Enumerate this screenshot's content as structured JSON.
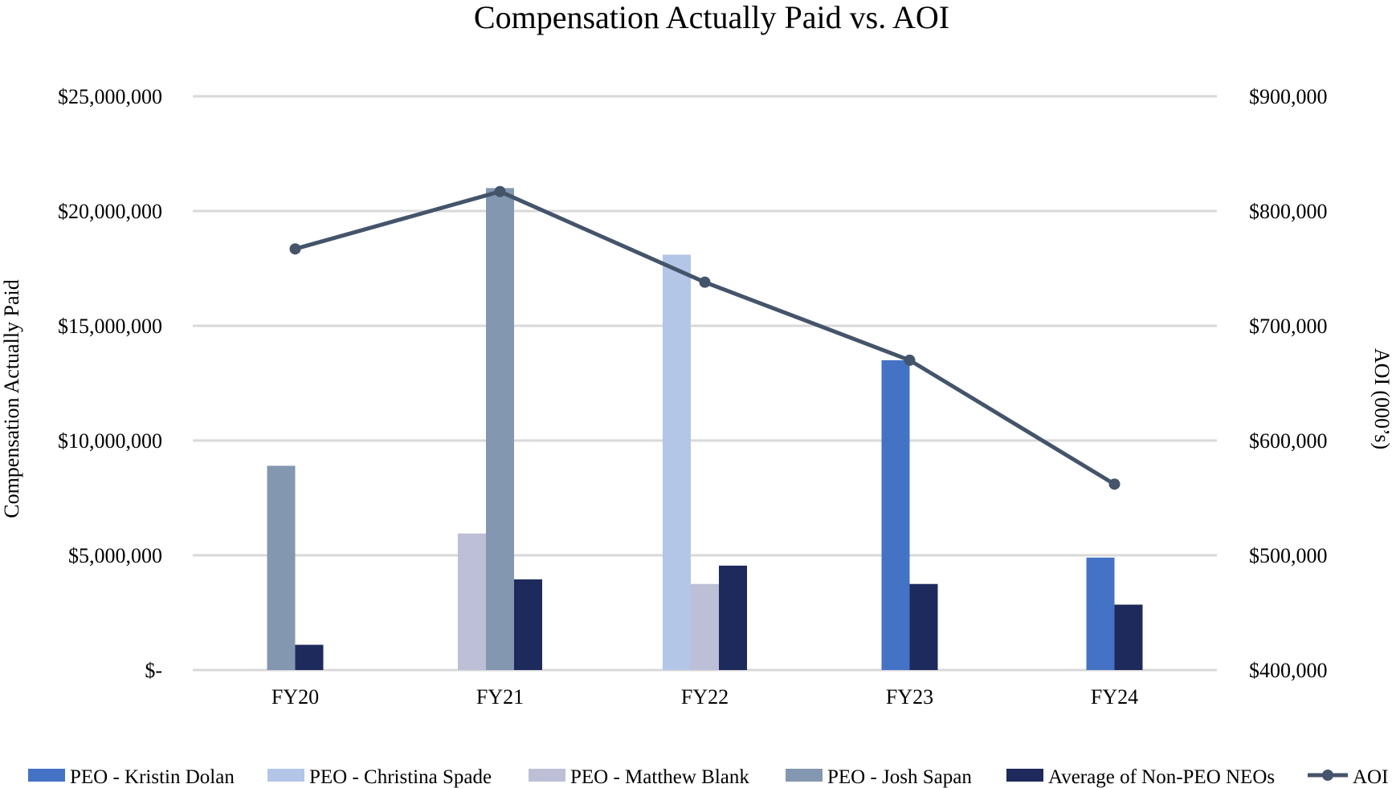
{
  "chart_data": {
    "type": "bar",
    "title": "Compensation Actually Paid vs. AOI",
    "xlabel": "",
    "ylabel": "Compensation Actually Paid",
    "y2label": "AOI (000’s)",
    "categories": [
      "FY20",
      "FY21",
      "FY22",
      "FY23",
      "FY24"
    ],
    "ylim": [
      0,
      25000000
    ],
    "y2lim": [
      400000,
      900000
    ],
    "yticks": [
      {
        "value": 0,
        "label": "$-"
      },
      {
        "value": 5000000,
        "label": "$5,000,000"
      },
      {
        "value": 10000000,
        "label": "$10,000,000"
      },
      {
        "value": 15000000,
        "label": "$15,000,000"
      },
      {
        "value": 20000000,
        "label": "$20,000,000"
      },
      {
        "value": 25000000,
        "label": "$25,000,000"
      }
    ],
    "y2ticks": [
      {
        "value": 400000,
        "label": "$400,000"
      },
      {
        "value": 500000,
        "label": "$500,000"
      },
      {
        "value": 600000,
        "label": "$600,000"
      },
      {
        "value": 700000,
        "label": "$700,000"
      },
      {
        "value": 800000,
        "label": "$800,000"
      },
      {
        "value": 900000,
        "label": "$900,000"
      }
    ],
    "grid": true,
    "legend_position": "bottom",
    "series": [
      {
        "name": "PEO - Kristin Dolan",
        "kind": "bar",
        "color": "#4472C4",
        "values": [
          null,
          null,
          null,
          13500000,
          4900000
        ]
      },
      {
        "name": "PEO - Christina Spade",
        "kind": "bar",
        "color": "#B4C6E7",
        "values": [
          null,
          null,
          18100000,
          null,
          null
        ]
      },
      {
        "name": "PEO - Matthew Blank",
        "kind": "bar",
        "color": "#BCBFD6",
        "values": [
          null,
          5950000,
          3750000,
          null,
          null
        ]
      },
      {
        "name": "PEO - Josh Sapan",
        "kind": "bar",
        "color": "#8497B0",
        "values": [
          8900000,
          21000000,
          null,
          null,
          null
        ]
      },
      {
        "name": "Average of Non-PEO NEOs",
        "kind": "bar",
        "color": "#1F2A5C",
        "values": [
          1100000,
          3950000,
          4550000,
          3750000,
          2850000
        ]
      },
      {
        "name": "AOI",
        "kind": "line",
        "axis": "right",
        "color": "#44546A",
        "values": [
          767000,
          817000,
          738000,
          670000,
          562000
        ]
      }
    ]
  }
}
